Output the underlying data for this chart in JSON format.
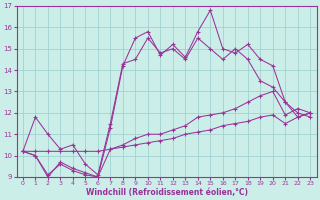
{
  "xlabel": "Windchill (Refroidissement éolien,°C)",
  "hours": [
    0,
    1,
    2,
    3,
    4,
    5,
    6,
    7,
    8,
    9,
    10,
    11,
    12,
    13,
    14,
    15,
    16,
    17,
    18,
    19,
    20,
    21,
    22,
    23
  ],
  "line1": [
    10.2,
    10.2,
    10.2,
    10.2,
    10.2,
    10.2,
    10.2,
    10.3,
    10.4,
    10.5,
    10.6,
    10.7,
    10.8,
    11.0,
    11.1,
    11.2,
    11.4,
    11.5,
    11.6,
    11.8,
    11.9,
    11.5,
    11.8,
    12.0
  ],
  "line2": [
    10.2,
    10.0,
    9.1,
    9.6,
    9.3,
    9.1,
    9.0,
    10.3,
    10.5,
    10.8,
    11.0,
    11.0,
    11.2,
    11.4,
    11.8,
    11.9,
    12.0,
    12.2,
    12.5,
    12.8,
    13.0,
    11.9,
    12.2,
    12.0
  ],
  "line3": [
    10.2,
    11.8,
    11.0,
    10.3,
    10.5,
    9.6,
    9.1,
    11.5,
    14.3,
    14.5,
    15.5,
    14.8,
    15.0,
    14.5,
    15.5,
    15.0,
    14.5,
    15.0,
    14.5,
    13.5,
    13.2,
    12.5,
    11.8,
    12.0
  ],
  "line4": [
    10.2,
    10.0,
    9.0,
    9.7,
    9.4,
    9.2,
    9.0,
    11.3,
    14.2,
    15.5,
    15.8,
    14.7,
    15.2,
    14.6,
    15.8,
    16.8,
    15.0,
    14.8,
    15.2,
    14.5,
    14.2,
    12.5,
    12.0,
    11.8
  ],
  "bg_color": "#cceee8",
  "line_color": "#993399",
  "grid_color": "#99cccc",
  "ylim": [
    9,
    17
  ],
  "yticks": [
    9,
    10,
    11,
    12,
    13,
    14,
    15,
    16,
    17
  ],
  "xticks": [
    0,
    1,
    2,
    3,
    4,
    5,
    6,
    7,
    8,
    9,
    10,
    11,
    12,
    13,
    14,
    15,
    16,
    17,
    18,
    19,
    20,
    21,
    22,
    23
  ],
  "marker": "+"
}
